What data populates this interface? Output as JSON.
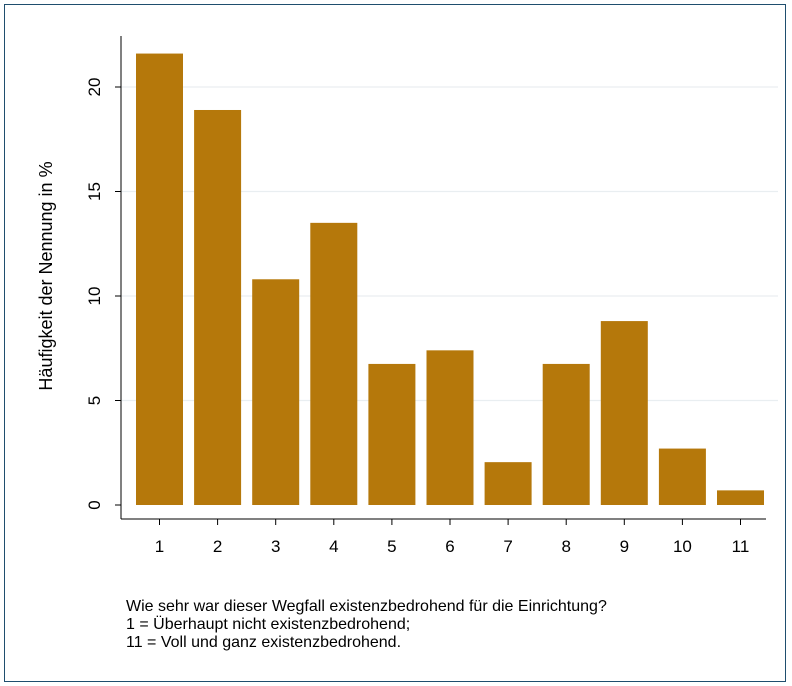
{
  "chart_data": {
    "type": "bar",
    "categories": [
      "1",
      "2",
      "3",
      "4",
      "5",
      "6",
      "7",
      "8",
      "9",
      "10",
      "11"
    ],
    "values": [
      21.6,
      18.9,
      10.8,
      13.5,
      6.75,
      7.4,
      2.05,
      6.75,
      8.8,
      2.7,
      0.7
    ],
    "title": "",
    "xlabel": "",
    "ylabel": "Häufigkeit der Nennung in %",
    "ylim": [
      0,
      22.5
    ],
    "yticks": [
      0,
      5,
      10,
      15,
      20
    ],
    "ytick_labels": [
      "0",
      "5",
      "10",
      "15",
      "20"
    ],
    "grid": true,
    "bar_color": "#b5780b",
    "grid_color": "#e9eef1",
    "note_lines": [
      "Wie sehr war dieser Wegfall existenzbedrohend für die Einrichtung?",
      "1 = Überhaupt nicht existenzbedrohend;",
      "11 = Voll und ganz existenzbedrohend."
    ]
  },
  "colors": {
    "frame_border": "#1f4e6e",
    "background": "#ffffff"
  }
}
